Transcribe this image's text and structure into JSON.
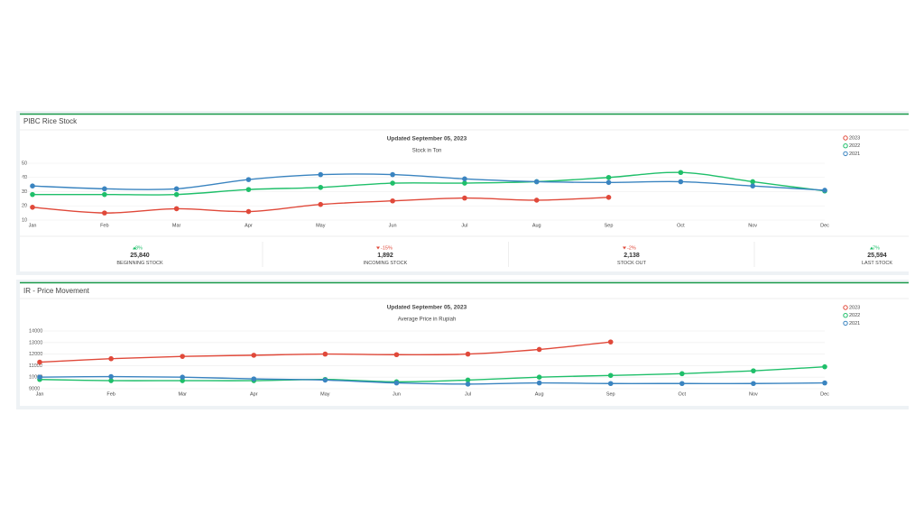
{
  "chart_data": [
    {
      "type": "line",
      "header": "PIBC Rice Stock",
      "title": "Updated September 05, 2023",
      "subtitle": "Stock in Ton",
      "categories": [
        "Jan",
        "Feb",
        "Mar",
        "Apr",
        "May",
        "Jun",
        "Jul",
        "Aug",
        "Sep",
        "Oct",
        "Nov",
        "Dec"
      ],
      "series": [
        {
          "name": "2023",
          "color": "#e0493a",
          "values": [
            19,
            15,
            18,
            16,
            21,
            23.5,
            25.5,
            24,
            26,
            null,
            null,
            null
          ]
        },
        {
          "name": "2022",
          "color": "#1fbf6a",
          "values": [
            28,
            28,
            28,
            31.5,
            33,
            36,
            36,
            37,
            40,
            43.5,
            37,
            30.5
          ]
        },
        {
          "name": "2021",
          "color": "#3a84c0",
          "values": [
            34,
            32,
            32,
            38.5,
            42,
            42,
            39,
            37,
            36.5,
            37,
            34,
            31
          ]
        }
      ],
      "ylim": [
        10,
        50
      ],
      "yticks": [
        10,
        20,
        30,
        40,
        50
      ],
      "grid": true,
      "legend": "top-right"
    },
    {
      "type": "line",
      "header": "IR - Price Movement",
      "title": "Updated September 05, 2023",
      "subtitle": "Average Price in Rupiah",
      "categories": [
        "Jan",
        "Feb",
        "Mar",
        "Apr",
        "May",
        "Jun",
        "Jul",
        "Aug",
        "Sep",
        "Oct",
        "Nov",
        "Dec"
      ],
      "series": [
        {
          "name": "2023",
          "color": "#e0493a",
          "values": [
            11300,
            11600,
            11800,
            11900,
            12000,
            11950,
            12000,
            12400,
            13050,
            null,
            null,
            null
          ]
        },
        {
          "name": "2022",
          "color": "#1fbf6a",
          "values": [
            9800,
            9700,
            9700,
            9700,
            9800,
            9600,
            9750,
            10000,
            10150,
            10300,
            10550,
            10900
          ]
        },
        {
          "name": "2021",
          "color": "#3a84c0",
          "values": [
            10000,
            10050,
            10000,
            9850,
            9750,
            9500,
            9400,
            9500,
            9450,
            9450,
            9450,
            9500
          ]
        }
      ],
      "ylim": [
        9000,
        14000
      ],
      "yticks": [
        9000,
        10000,
        11000,
        12000,
        13000,
        14000
      ],
      "grid": true,
      "legend": "top-right"
    }
  ],
  "stats": [
    {
      "change": "8%",
      "direction": "up",
      "value": "25,840",
      "label": "BEGINNING STOCK"
    },
    {
      "change": "-15%",
      "direction": "down",
      "value": "1,892",
      "label": "INCOMING STOCK"
    },
    {
      "change": "-2%",
      "direction": "down",
      "value": "2,138",
      "label": "STOCK OUT"
    },
    {
      "change": "7%",
      "direction": "up",
      "value": "25,594",
      "label": "LAST STOCK"
    }
  ]
}
